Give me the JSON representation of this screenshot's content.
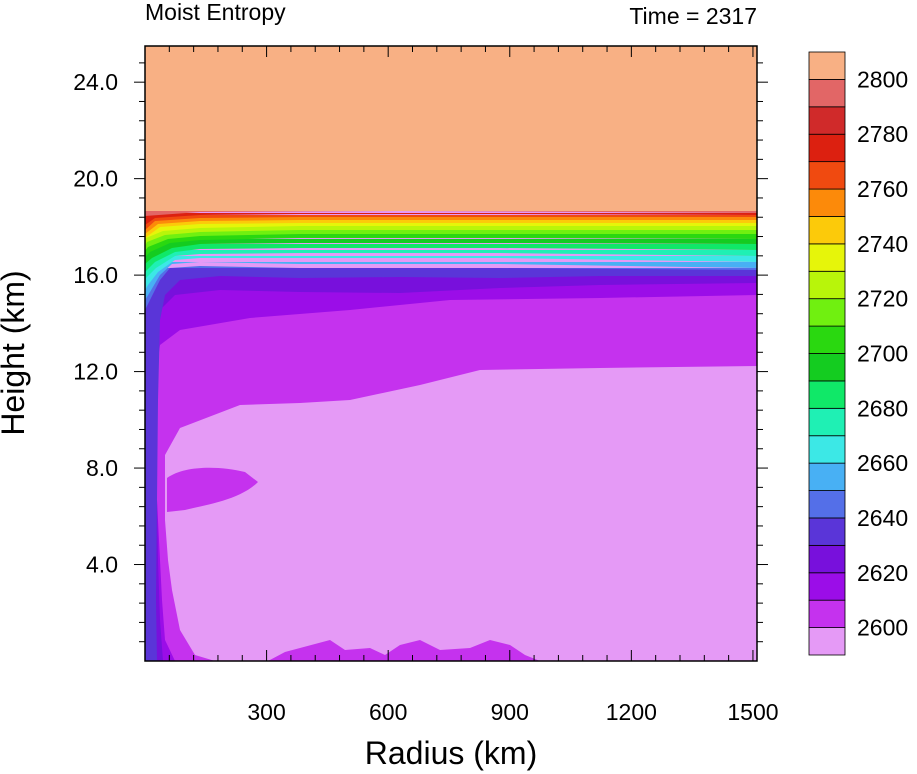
{
  "chart_data": {
    "type": "heatmap",
    "title_left": "Moist Entropy",
    "title_right": "Time = 2317",
    "xlabel": "Radius (km)",
    "ylabel": "Height (km)",
    "xlim": [
      0,
      1510
    ],
    "ylim": [
      0,
      25.5
    ],
    "x_ticks": [
      300,
      600,
      900,
      1200,
      1500
    ],
    "x_tick_labels": [
      "300",
      "600",
      "900",
      "1200",
      "1500"
    ],
    "y_ticks": [
      4,
      8,
      12,
      16,
      20,
      24
    ],
    "y_tick_labels": [
      "4.0",
      "8.0",
      "12.0",
      "16.0",
      "20.0",
      "24.0"
    ],
    "colorbar": {
      "levels": [
        2600,
        2610,
        2620,
        2630,
        2640,
        2650,
        2660,
        2670,
        2680,
        2690,
        2700,
        2710,
        2720,
        2730,
        2740,
        2750,
        2760,
        2770,
        2780,
        2790,
        2800
      ],
      "labels": [
        "2600",
        "2620",
        "2640",
        "2660",
        "2680",
        "2700",
        "2720",
        "2740",
        "2760",
        "2780",
        "2800"
      ],
      "label_values": [
        2600,
        2620,
        2640,
        2660,
        2680,
        2700,
        2720,
        2740,
        2760,
        2780,
        2800
      ],
      "colors": [
        "#e59af6",
        "#c532ee",
        "#9b0de8",
        "#7810dc",
        "#5a35d8",
        "#546fe8",
        "#48b0f4",
        "#3ce8e6",
        "#1ff0b4",
        "#10e868",
        "#14cc20",
        "#2ad810",
        "#70f010",
        "#b8f50a",
        "#e6f50a",
        "#fcca0a",
        "#fc8a0a",
        "#f04a10",
        "#dc2010",
        "#d02a2a",
        "#e26666",
        "#f8b084"
      ]
    }
  }
}
